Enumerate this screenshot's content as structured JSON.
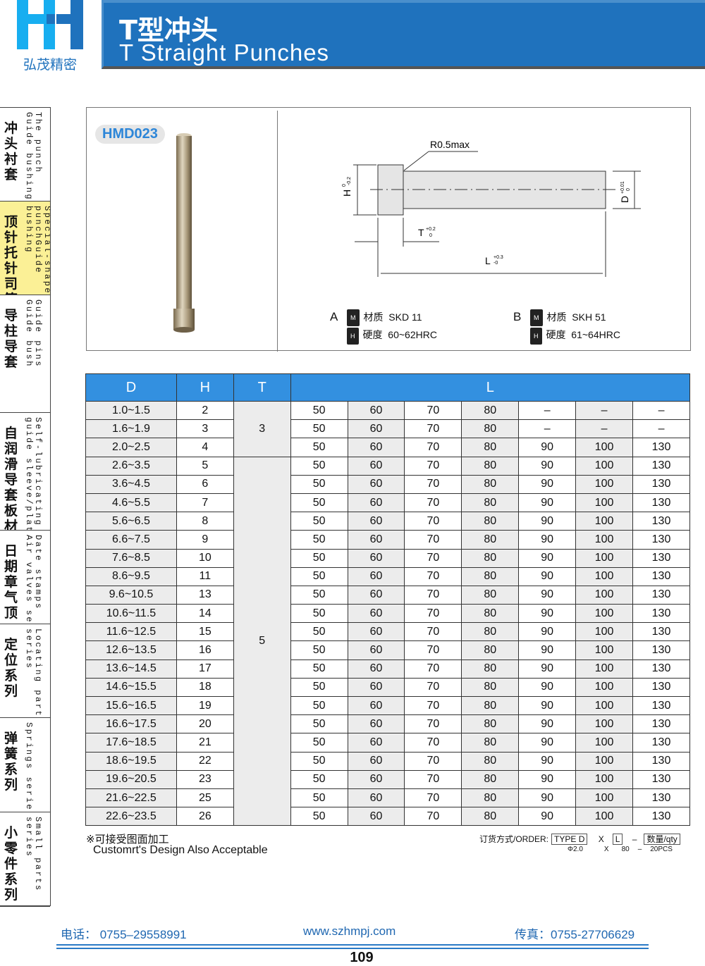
{
  "logo": {
    "text": "弘茂精密",
    "colors": {
      "light": "#17aef0",
      "dark": "#1f72bd"
    }
  },
  "header": {
    "title_cn": "T型冲头",
    "title_en": "T Straight Punches"
  },
  "sidebar": [
    {
      "cn": "冲头 衬套",
      "en": "The punch\nGuide bushing",
      "active": false
    },
    {
      "cn": "顶针 托针 司筒",
      "en": "Special-shaped\npunchGuide\nbushing",
      "active": true
    },
    {
      "cn": "导柱 导套",
      "en": "Guide pins\nGuide bush",
      "active": false
    },
    {
      "cn": "自润滑导套板材",
      "en": "Self-lubricating\nguide sleeve/plate",
      "active": false
    },
    {
      "cn": "日期章 气顶",
      "en": "Date stamps\nAir valves series",
      "active": false
    },
    {
      "cn": "定位系列",
      "en": "Locating parts\nseries",
      "active": false
    },
    {
      "cn": "弹簧系列",
      "en": "Springs series",
      "active": false
    },
    {
      "cn": "小零件系列",
      "en": "Small parts\nseries",
      "active": false
    }
  ],
  "figure": {
    "code": "HMD023",
    "r_label": "R0.5max",
    "h_label": "H",
    "h_tol_up": "0",
    "h_tol_lo": "-0.2",
    "d_label": "D",
    "d_tol_up": "+0.01",
    "d_tol_lo": "0",
    "t_label": "T",
    "t_tol_up": "+0.2",
    "t_tol_lo": "0",
    "l_label": "L",
    "l_tol_up": "+0.3",
    "l_tol_lo": "-0",
    "materials": [
      {
        "type": "A",
        "m_badge": "M",
        "m_label": "材质",
        "m_value": "SKD 11",
        "h_badge": "H",
        "h_label": "硬度",
        "h_value": "60~62HRC"
      },
      {
        "type": "B",
        "m_badge": "M",
        "m_label": "材质",
        "m_value": "SKH 51",
        "h_badge": "H",
        "h_label": "硬度",
        "h_value": "61~64HRC"
      }
    ]
  },
  "table": {
    "headers": [
      "D",
      "H",
      "T",
      "L"
    ],
    "t_groups": [
      {
        "value": "3",
        "rows": 3
      },
      {
        "value": "5",
        "rows": 20
      }
    ],
    "rows": [
      [
        "1.0~1.5",
        "2",
        [
          "50",
          "60",
          "70",
          "80",
          "–",
          "–",
          "–"
        ]
      ],
      [
        "1.6~1.9",
        "3",
        [
          "50",
          "60",
          "70",
          "80",
          "–",
          "–",
          "–"
        ]
      ],
      [
        "2.0~2.5",
        "4",
        [
          "50",
          "60",
          "70",
          "80",
          "90",
          "100",
          "130"
        ]
      ],
      [
        "2.6~3.5",
        "5",
        [
          "50",
          "60",
          "70",
          "80",
          "90",
          "100",
          "130"
        ]
      ],
      [
        "3.6~4.5",
        "6",
        [
          "50",
          "60",
          "70",
          "80",
          "90",
          "100",
          "130"
        ]
      ],
      [
        "4.6~5.5",
        "7",
        [
          "50",
          "60",
          "70",
          "80",
          "90",
          "100",
          "130"
        ]
      ],
      [
        "5.6~6.5",
        "8",
        [
          "50",
          "60",
          "70",
          "80",
          "90",
          "100",
          "130"
        ]
      ],
      [
        "6.6~7.5",
        "9",
        [
          "50",
          "60",
          "70",
          "80",
          "90",
          "100",
          "130"
        ]
      ],
      [
        "7.6~8.5",
        "10",
        [
          "50",
          "60",
          "70",
          "80",
          "90",
          "100",
          "130"
        ]
      ],
      [
        "8.6~9.5",
        "11",
        [
          "50",
          "60",
          "70",
          "80",
          "90",
          "100",
          "130"
        ]
      ],
      [
        "9.6~10.5",
        "13",
        [
          "50",
          "60",
          "70",
          "80",
          "90",
          "100",
          "130"
        ]
      ],
      [
        "10.6~11.5",
        "14",
        [
          "50",
          "60",
          "70",
          "80",
          "90",
          "100",
          "130"
        ]
      ],
      [
        "11.6~12.5",
        "15",
        [
          "50",
          "60",
          "70",
          "80",
          "90",
          "100",
          "130"
        ]
      ],
      [
        "12.6~13.5",
        "16",
        [
          "50",
          "60",
          "70",
          "80",
          "90",
          "100",
          "130"
        ]
      ],
      [
        "13.6~14.5",
        "17",
        [
          "50",
          "60",
          "70",
          "80",
          "90",
          "100",
          "130"
        ]
      ],
      [
        "14.6~15.5",
        "18",
        [
          "50",
          "60",
          "70",
          "80",
          "90",
          "100",
          "130"
        ]
      ],
      [
        "15.6~16.5",
        "19",
        [
          "50",
          "60",
          "70",
          "80",
          "90",
          "100",
          "130"
        ]
      ],
      [
        "16.6~17.5",
        "20",
        [
          "50",
          "60",
          "70",
          "80",
          "90",
          "100",
          "130"
        ]
      ],
      [
        "17.6~18.5",
        "21",
        [
          "50",
          "60",
          "70",
          "80",
          "90",
          "100",
          "130"
        ]
      ],
      [
        "18.6~19.5",
        "22",
        [
          "50",
          "60",
          "70",
          "80",
          "90",
          "100",
          "130"
        ]
      ],
      [
        "19.6~20.5",
        "23",
        [
          "50",
          "60",
          "70",
          "80",
          "90",
          "100",
          "130"
        ]
      ],
      [
        "21.6~22.5",
        "25",
        [
          "50",
          "60",
          "70",
          "80",
          "90",
          "100",
          "130"
        ]
      ],
      [
        "22.6~23.5",
        "26",
        [
          "50",
          "60",
          "70",
          "80",
          "90",
          "100",
          "130"
        ]
      ]
    ]
  },
  "notes": {
    "cn": "※可接受图面加工",
    "en": "Customrt's Design Also Acceptable"
  },
  "order": {
    "label": "订货方式/ORDER:",
    "type_box": "TYPE D",
    "x": "X",
    "l_box": "L",
    "dash": "–",
    "qty_box": "数量/qty",
    "ex_d": "Φ2.0",
    "ex_x": "X",
    "ex_l": "80",
    "ex_dash": "–",
    "ex_qty": "20PCS"
  },
  "footer": {
    "phone": "电话： 0755–29558991",
    "website": "www.szhmpj.com",
    "fax": "传真：0755-27706629",
    "page": "109"
  },
  "colors": {
    "header_blue": "#1f72bd",
    "table_head": "#3390e0",
    "active_section": "#fbf096",
    "footer_text": "#1f67b1"
  }
}
